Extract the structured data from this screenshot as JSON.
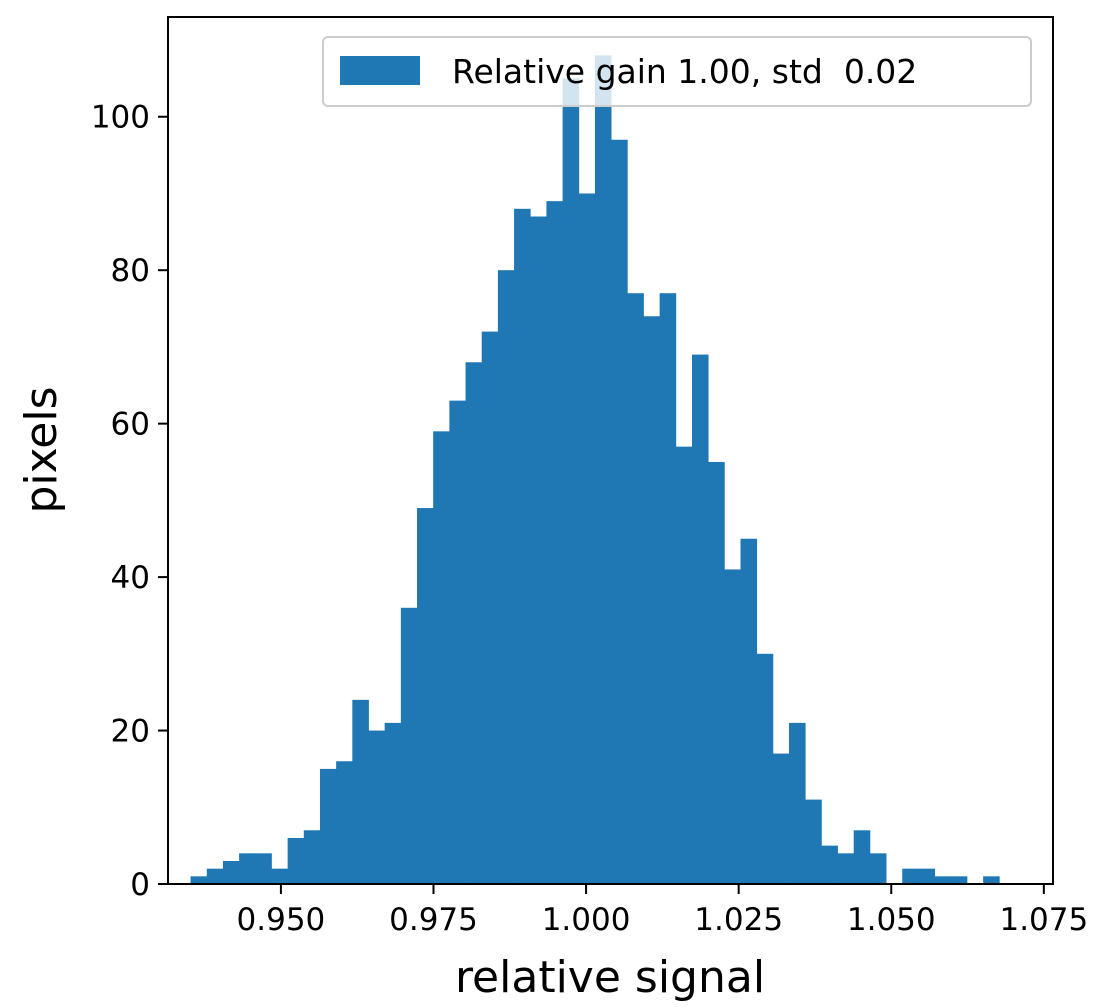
{
  "chart_data": {
    "type": "bar",
    "subtype": "histogram",
    "xlabel": "relative signal",
    "ylabel": "pixels",
    "xlim": [
      0.9315,
      1.0765
    ],
    "ylim": [
      0,
      113
    ],
    "grid": false,
    "legend_position": "top-right",
    "bar_color": "#1f77b4",
    "x_ticks": [
      0.95,
      0.975,
      1.0,
      1.025,
      1.05,
      1.075
    ],
    "x_tick_labels": [
      "0.950",
      "0.975",
      "1.000",
      "1.025",
      "1.050",
      "1.075"
    ],
    "y_ticks": [
      0,
      20,
      40,
      60,
      80,
      100
    ],
    "y_tick_labels": [
      "0",
      "20",
      "40",
      "60",
      "80",
      "100"
    ],
    "bin_start": 0.9352,
    "bin_width": 0.00265,
    "series": [
      {
        "name": "Relative gain 1.00, std  0.02",
        "values": [
          1,
          2,
          3,
          4,
          4,
          2,
          6,
          7,
          15,
          16,
          24,
          20,
          21,
          36,
          49,
          59,
          63,
          68,
          72,
          80,
          88,
          87,
          89,
          105,
          90,
          108,
          97,
          77,
          74,
          77,
          57,
          69,
          55,
          41,
          45,
          30,
          17,
          21,
          11,
          5,
          4,
          7,
          4,
          0,
          2,
          2,
          1,
          1,
          0,
          1
        ]
      }
    ]
  }
}
